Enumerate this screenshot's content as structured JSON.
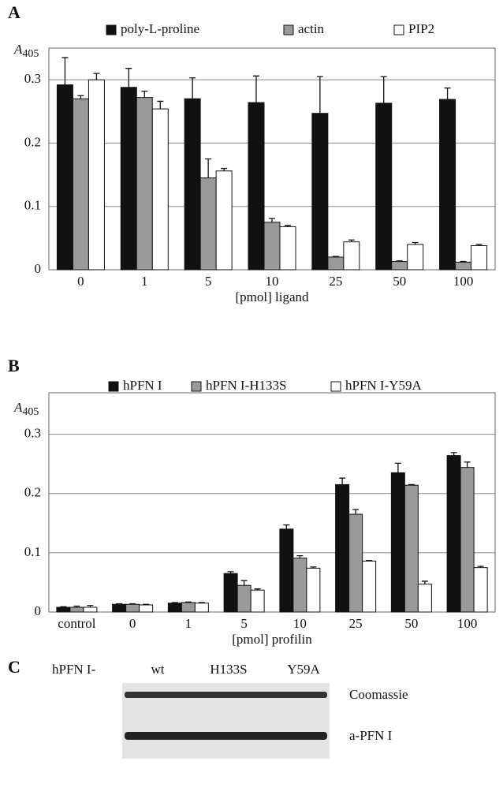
{
  "chart_data": [
    {
      "type": "bar",
      "panel_label": "A",
      "ylabel": "A",
      "ylabel_sub": "405",
      "xlabel": "[pmol] ligand",
      "categories": [
        "0",
        "1",
        "5",
        "10",
        "25",
        "50",
        "100"
      ],
      "series": [
        {
          "name": "poly-L-proline",
          "color": "#111111",
          "values": [
            0.292,
            0.288,
            0.27,
            0.264,
            0.247,
            0.263,
            0.269
          ],
          "errors": [
            0.043,
            0.03,
            0.033,
            0.042,
            0.058,
            0.042,
            0.018
          ]
        },
        {
          "name": "actin",
          "color": "#999999",
          "values": [
            0.27,
            0.272,
            0.145,
            0.075,
            0.02,
            0.013,
            0.012
          ],
          "errors": [
            0.005,
            0.01,
            0.03,
            0.006,
            0.001,
            0.001,
            0.001
          ]
        },
        {
          "name": "PIP2",
          "color": "#ffffff",
          "values": [
            0.3,
            0.254,
            0.156,
            0.068,
            0.044,
            0.04,
            0.038
          ],
          "errors": [
            0.01,
            0.012,
            0.004,
            0.002,
            0.003,
            0.003,
            0.002
          ]
        }
      ],
      "ylim": [
        0,
        0.35
      ],
      "yticks": [
        0,
        0.1,
        0.2,
        0.3
      ],
      "grid": true
    },
    {
      "type": "bar",
      "panel_label": "B",
      "ylabel": "A",
      "ylabel_sub": "405",
      "xlabel": "[pmol] profilin",
      "categories": [
        "control",
        "0",
        "1",
        "5",
        "10",
        "25",
        "50",
        "100"
      ],
      "series": [
        {
          "name": "hPFN I",
          "color": "#111111",
          "values": [
            0.008,
            0.013,
            0.015,
            0.065,
            0.14,
            0.215,
            0.235,
            0.264
          ],
          "errors": [
            0.001,
            0.001,
            0.001,
            0.003,
            0.007,
            0.011,
            0.016,
            0.005
          ]
        },
        {
          "name": "hPFN I-H133S",
          "color": "#999999",
          "values": [
            0.008,
            0.013,
            0.016,
            0.045,
            0.091,
            0.165,
            0.214,
            0.244
          ],
          "errors": [
            0.002,
            0.001,
            0.001,
            0.008,
            0.004,
            0.008,
            0.001,
            0.009
          ]
        },
        {
          "name": "hPFN I-Y59A",
          "color": "#ffffff",
          "values": [
            0.008,
            0.012,
            0.015,
            0.037,
            0.074,
            0.086,
            0.047,
            0.075
          ],
          "errors": [
            0.003,
            0.001,
            0.001,
            0.002,
            0.002,
            0.001,
            0.005,
            0.002
          ]
        }
      ],
      "ylim": [
        0,
        0.37
      ],
      "yticks": [
        0,
        0.1,
        0.2,
        0.3
      ],
      "grid": true
    }
  ],
  "panel_c": {
    "label": "C",
    "prefix": "hPFN I-",
    "lanes": [
      "wt",
      "H133S",
      "Y59A"
    ],
    "rows": [
      "Coomassie",
      "a-PFN I"
    ]
  }
}
